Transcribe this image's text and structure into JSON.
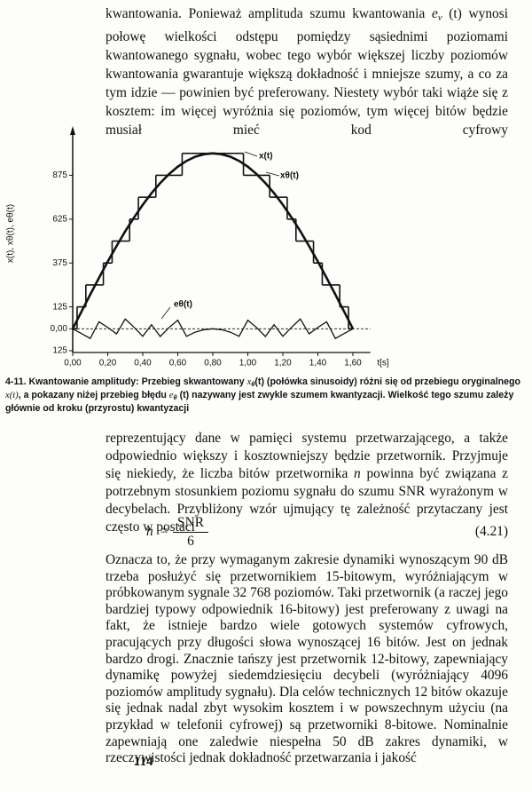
{
  "paragraph_1": [
    "kwantowania. Ponieważ amplituda szumu kwantowania ",
    "e",
    "v",
    " (t) wynosi połowę wielkości odstępu pomiędzy sąsiednimi poziomami kwantowanego sygnału, wobec tego wybór większej liczby poziomów kwantowania gwarantuje większą dokładność i mniejsze szumy, a co za tym idzie — powinien być preferowany. Niestety wybór taki wiąże się z kosztem: im więcej wyróżnia się poziomów, tym więcej bitów będzie musiał mieć kod cyfrowy"
  ],
  "figure": {
    "chart_data": {
      "type": "line",
      "y_label": "x(t), xθ(t), eθ(t)",
      "x_label": "t[s]",
      "x": [
        0,
        0.05,
        0.1,
        0.15,
        0.2,
        0.25,
        0.3,
        0.35,
        0.4,
        0.45,
        0.5,
        0.55,
        0.6,
        0.65,
        0.7,
        0.75,
        0.8,
        0.85,
        0.9,
        0.95,
        1.0,
        1.05,
        1.1,
        1.15,
        1.2,
        1.25,
        1.3,
        1.35,
        1.4,
        1.45,
        1.5,
        1.55,
        1.6
      ],
      "series": [
        {
          "name": "x(t)",
          "color": "#111111",
          "values": [
            0,
            98,
            195,
            290,
            383,
            471,
            556,
            634,
            707,
            773,
            831,
            882,
            924,
            957,
            981,
            995,
            1000,
            995,
            981,
            957,
            924,
            882,
            831,
            773,
            707,
            634,
            556,
            471,
            383,
            290,
            195,
            98,
            0
          ]
        },
        {
          "name": "xθ(t)",
          "color": "#111111",
          "step": true,
          "values": [
            0,
            125,
            250,
            250,
            375,
            500,
            500,
            625,
            750,
            750,
            875,
            875,
            875,
            1000,
            1000,
            1000,
            1000,
            1000,
            1000,
            1000,
            875,
            875,
            875,
            750,
            750,
            625,
            500,
            500,
            375,
            250,
            250,
            125,
            0
          ]
        },
        {
          "name": "eθ(t)",
          "color": "#111111",
          "values": [
            0,
            -27,
            -55,
            40,
            8,
            -29,
            56,
            9,
            -43,
            23,
            -44,
            7,
            49,
            -43,
            -19,
            -5,
            0,
            -5,
            -19,
            -43,
            49,
            7,
            -44,
            23,
            -43,
            9,
            56,
            -29,
            8,
            40,
            -55,
            -27,
            0
          ]
        }
      ],
      "xlim": [
        0,
        1.7
      ],
      "ylim": [
        -130,
        1120
      ],
      "xticks": [
        {
          "value": 0,
          "label": "0,00"
        },
        {
          "value": 0.2,
          "label": "0,20"
        },
        {
          "value": 0.4,
          "label": "0,40"
        },
        {
          "value": 0.6,
          "label": "0,60"
        },
        {
          "value": 0.8,
          "label": "0,80"
        },
        {
          "value": 1.0,
          "label": "1,00"
        },
        {
          "value": 1.2,
          "label": "1,20"
        },
        {
          "value": 1.4,
          "label": "1,40"
        },
        {
          "value": 1.6,
          "label": "1,60"
        }
      ],
      "yticks": [
        {
          "value": -125,
          "label": "125"
        },
        {
          "value": 0,
          "label": "0,00"
        },
        125,
        375,
        625,
        875
      ],
      "grid": false
    },
    "caption": [
      "4-11. Kwantowanie amplitudy: Przebieg skwantowany ",
      "x",
      "θ",
      "(t) (połówka sinusoidy) różni się od przebiegu oryginalnego ",
      "x(t)",
      ", a pokazany niżej przebieg błędu ",
      "e",
      "θ",
      " (t) nazywany jest zwykle szumem kwantyzacji. Wielkość tego szumu zależy głównie od kroku (przyrostu) kwantyzacji"
    ]
  },
  "paragraph_2": [
    "reprezentujący dane w pamięci systemu przetwarzającego, a także odpowiednio większy i kosztowniejszy będzie przetwornik. Przyjmuje się niekiedy, że liczba bitów przetwornika ",
    "n",
    " powinna być związana z potrzebnym stosunkiem poziomu sygnału do szumu SNR wyrażonym w decybelach. Przybliżony wzór ujmujący tę zależność przytaczany jest często w postaci"
  ],
  "formula": {
    "lhs": "n",
    "eq": "=",
    "numerator": "SNR",
    "denominator": "6",
    "number": "(4.21)"
  },
  "paragraph_3": "Oznacza to, że przy wymaganym zakresie dynamiki wynoszącym 90 dB trzeba posłużyć się przetwornikiem 15-bitowym, wyróżniającym w próbkowanym sygnale 32 768 poziomów. Taki przetwornik (a raczej jego bardziej typowy odpowiednik 16-bitowy) jest preferowany z uwagi na fakt, że istnieje bardzo wiele gotowych systemów cyfrowych, pracujących przy długości słowa wynoszącej 16 bitów. Jest on jednak bardzo drogi. Znacznie tańszy jest przetwornik 12-bitowy, zapewniający dynamikę powyżej siedemdziesięciu decybeli (wyróżniający 4096 poziomów amplitudy sygnału). Dla celów technicznych 12 bitów okazuje się jednak nadal zbyt wysokim kosztem i w powszechnym użyciu (na przykład w telefonii cyfrowej) są przetworniki 8-bitowe. Nominalnie zapewniają one zaledwie niespełna 50 dB zakres dynamiki, w rzeczywistości jednak dokładność przetwarzania i jakość",
  "page_number": "114"
}
